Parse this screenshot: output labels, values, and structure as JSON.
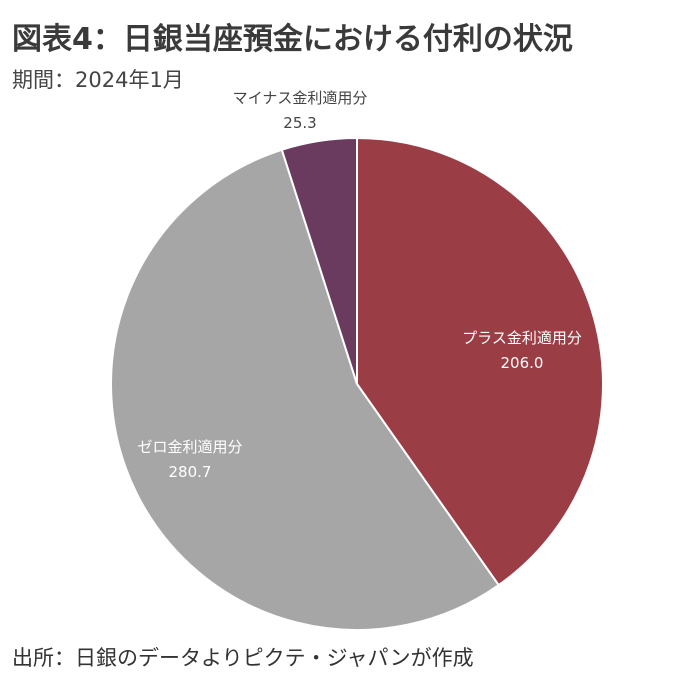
{
  "title": "図表4：日銀当座預金における付利の状況",
  "subtitle": "期間：2024年1月",
  "source": "出所：日銀のデータよりピクテ・ジャパンが作成",
  "chart_data": {
    "type": "pie",
    "slices": [
      {
        "label": "プラス金利適用分",
        "value": 206.0,
        "value_text": "206.0",
        "color": "#9b3d45",
        "label_color": "#ffffff"
      },
      {
        "label": "ゼロ金利適用分",
        "value": 280.7,
        "value_text": "280.7",
        "color": "#a6a6a6",
        "label_color": "#ffffff"
      },
      {
        "label": "マイナス金利適用分",
        "value": 25.3,
        "value_text": "25.3",
        "color": "#6a3a5f",
        "label_color": "#444444"
      }
    ]
  }
}
